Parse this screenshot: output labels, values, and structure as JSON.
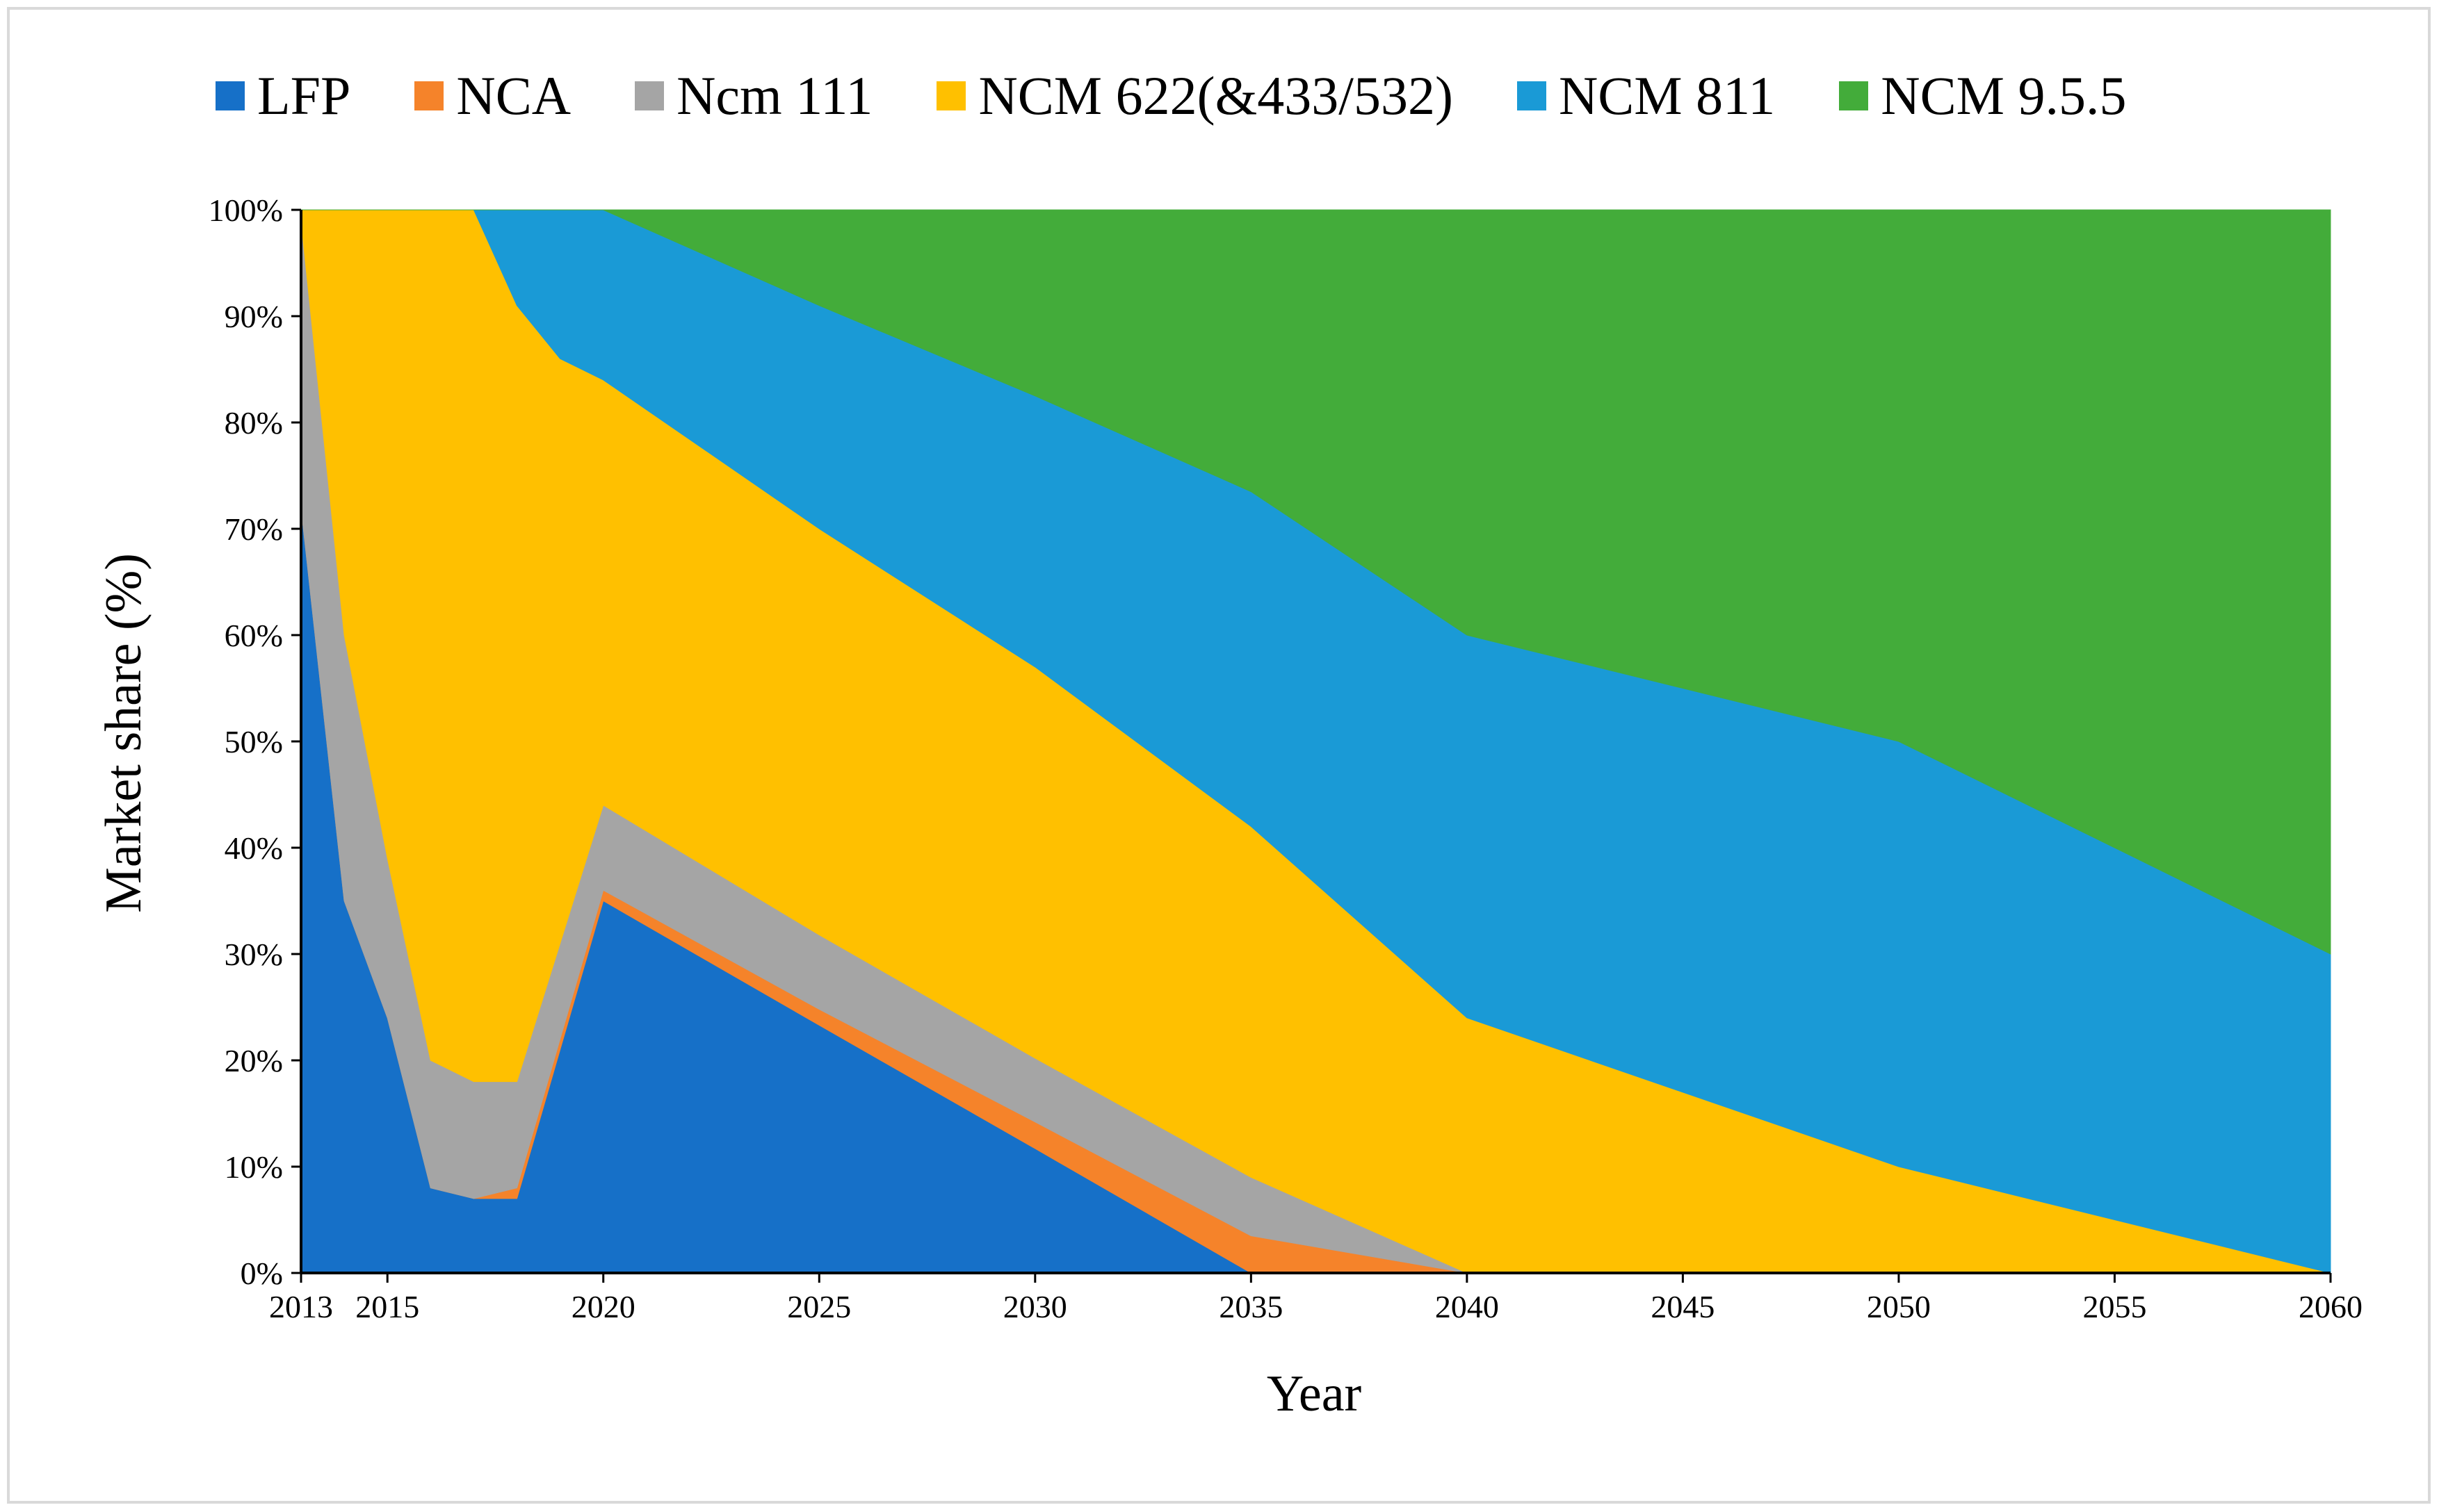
{
  "chart_data": {
    "type": "area",
    "stacked": true,
    "title": "",
    "xlabel": "Year",
    "ylabel": "Market share (%)",
    "xlim": [
      2013,
      2060
    ],
    "ylim": [
      0,
      100
    ],
    "x_tick_labels": [
      "2013",
      "2015",
      "2020",
      "2025",
      "2030",
      "2035",
      "2040",
      "2045",
      "2050",
      "2055",
      "2060"
    ],
    "y_tick_labels": [
      "0%",
      "10%",
      "20%",
      "30%",
      "40%",
      "50%",
      "60%",
      "70%",
      "80%",
      "90%",
      "100%"
    ],
    "legend_position": "top",
    "x": [
      2013,
      2014,
      2015,
      2016,
      2017,
      2018,
      2019,
      2020,
      2025,
      2030,
      2035,
      2040,
      2045,
      2050,
      2055,
      2060
    ],
    "series": [
      {
        "name": "LFP",
        "color": "#1670C8",
        "values": [
          72,
          35,
          24,
          8,
          7,
          7,
          21,
          35,
          23.3,
          11.7,
          0,
          0,
          0,
          0,
          0,
          0
        ]
      },
      {
        "name": "NCA",
        "color": "#F5832A",
        "values": [
          0,
          0,
          0,
          0,
          0,
          1,
          1,
          1,
          1.5,
          2.5,
          3.5,
          0,
          0,
          0,
          0,
          0
        ]
      },
      {
        "name": "Ncm 111",
        "color": "#A5A5A5",
        "values": [
          27,
          25,
          15,
          12,
          11,
          10,
          9,
          8,
          7,
          6,
          5.5,
          0,
          0,
          0,
          0,
          0
        ]
      },
      {
        "name": "NCM 622(&433/532)",
        "color": "#FFC000",
        "values": [
          1,
          40,
          61,
          80,
          82,
          73,
          55,
          40,
          38.2,
          36.8,
          33,
          24,
          17,
          10,
          5,
          0
        ]
      },
      {
        "name": "NCM 811",
        "color": "#1A9AD6",
        "values": [
          0,
          0,
          0,
          0,
          0,
          9,
          14,
          16,
          21,
          25.5,
          31.5,
          36,
          38,
          40,
          35,
          30
        ]
      },
      {
        "name": "NCM 9.5.5",
        "color": "#43AC3A",
        "values": [
          0,
          0,
          0,
          0,
          0,
          0,
          0,
          0,
          9,
          17.5,
          26.5,
          40,
          45,
          50,
          60,
          70
        ]
      }
    ]
  }
}
